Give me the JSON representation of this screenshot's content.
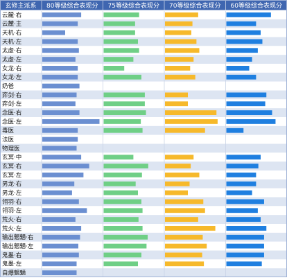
{
  "chart_data": {
    "type": "table",
    "header": {
      "label_column": "玄修主派系",
      "columns": [
        "80等级综合表现分",
        "75等级综合表现分",
        "70等级综合表现分",
        "60等级综合表现分"
      ]
    },
    "series": [
      {
        "name": "80等级综合表现分",
        "color": "#6b8fd1"
      },
      {
        "name": "75等级综合表现分",
        "color": "#6fcf86"
      },
      {
        "name": "70等级综合表现分",
        "color": "#f6b92b"
      },
      {
        "name": "60等级综合表现分",
        "color": "#1f7fe0"
      }
    ],
    "row_colors": {
      "odd": "#ffffff",
      "even": "#dde5f2",
      "header": "#3f66b0",
      "header_text": "#ffffff"
    },
    "value_scale": [
      0,
      1
    ],
    "rows": [
      {
        "label": "云麓·右",
        "values": [
          0.68,
          0.62,
          0.58,
          0.78
        ]
      },
      {
        "label": "云麓·主",
        "values": [
          0.62,
          0.55,
          0.48,
          0.52
        ]
      },
      {
        "label": "天机·右",
        "values": [
          0.4,
          0.55,
          0.46,
          0.6
        ]
      },
      {
        "label": "天机·左",
        "values": [
          0.62,
          0.6,
          0.55,
          0.63
        ]
      },
      {
        "label": "太虚·右",
        "values": [
          0.64,
          0.62,
          0.6,
          0.55
        ]
      },
      {
        "label": "太虚·左",
        "values": [
          0.58,
          0.52,
          0.5,
          0.45
        ]
      },
      {
        "label": "女龙·右",
        "values": [
          0.62,
          0.36,
          0.44,
          0.4
        ]
      },
      {
        "label": "女龙·左",
        "values": [
          0.62,
          0.66,
          0.53,
          0.52
        ]
      },
      {
        "label": "奶爸",
        "values": [
          0.65,
          null,
          null,
          null
        ]
      },
      {
        "label": "弈剑·右",
        "values": [
          0.6,
          0.72,
          0.4,
          0.7
        ]
      },
      {
        "label": "弈剑·左",
        "values": [
          0.58,
          0.72,
          0.4,
          0.68
        ]
      },
      {
        "label": "念医·右",
        "values": [
          0.65,
          0.74,
          0.9,
          0.8
        ]
      },
      {
        "label": "念医·左",
        "values": [
          1.0,
          0.65,
          0.92,
          0.86
        ]
      },
      {
        "label": "毒医",
        "values": [
          0.62,
          0.68,
          0.7,
          0.3
        ]
      },
      {
        "label": "法医",
        "values": [
          0.62,
          null,
          null,
          null
        ]
      },
      {
        "label": "物理医",
        "values": [
          0.6,
          null,
          null,
          null
        ]
      },
      {
        "label": "玄冥·中",
        "values": [
          0.68,
          0.52,
          0.5,
          0.6
        ]
      },
      {
        "label": "玄冥·右",
        "values": [
          0.82,
          0.78,
          0.45,
          0.56
        ]
      },
      {
        "label": "玄冥·左",
        "values": [
          0.72,
          0.67,
          0.6,
          0.52
        ]
      },
      {
        "label": "男龙·右",
        "values": [
          0.56,
          0.56,
          0.43,
          0.52
        ]
      },
      {
        "label": "男龙·左",
        "values": [
          0.52,
          0.6,
          0.4,
          0.45
        ]
      },
      {
        "label": "翎羽·右",
        "values": [
          0.64,
          0.66,
          0.67,
          0.66
        ]
      },
      {
        "label": "翎羽·左",
        "values": [
          0.78,
          0.68,
          0.7,
          0.55
        ]
      },
      {
        "label": "荒火·右",
        "values": [
          0.58,
          0.61,
          0.58,
          0.6
        ]
      },
      {
        "label": "荒火·左",
        "values": [
          0.68,
          0.68,
          0.88,
          0.7
        ]
      },
      {
        "label": "输出魍魉·右",
        "values": [
          0.66,
          0.77,
          0.66,
          0.66
        ]
      },
      {
        "label": "输出魍魉·左",
        "values": [
          0.63,
          0.75,
          0.73,
          0.66
        ]
      },
      {
        "label": "鬼墨·右",
        "values": [
          0.64,
          0.66,
          0.65,
          0.66
        ]
      },
      {
        "label": "鬼墨·左",
        "values": [
          0.6,
          0.6,
          0.68,
          0.62
        ]
      },
      {
        "label": "自爆魍魉",
        "values": [
          0.6,
          null,
          null,
          null
        ]
      }
    ]
  }
}
